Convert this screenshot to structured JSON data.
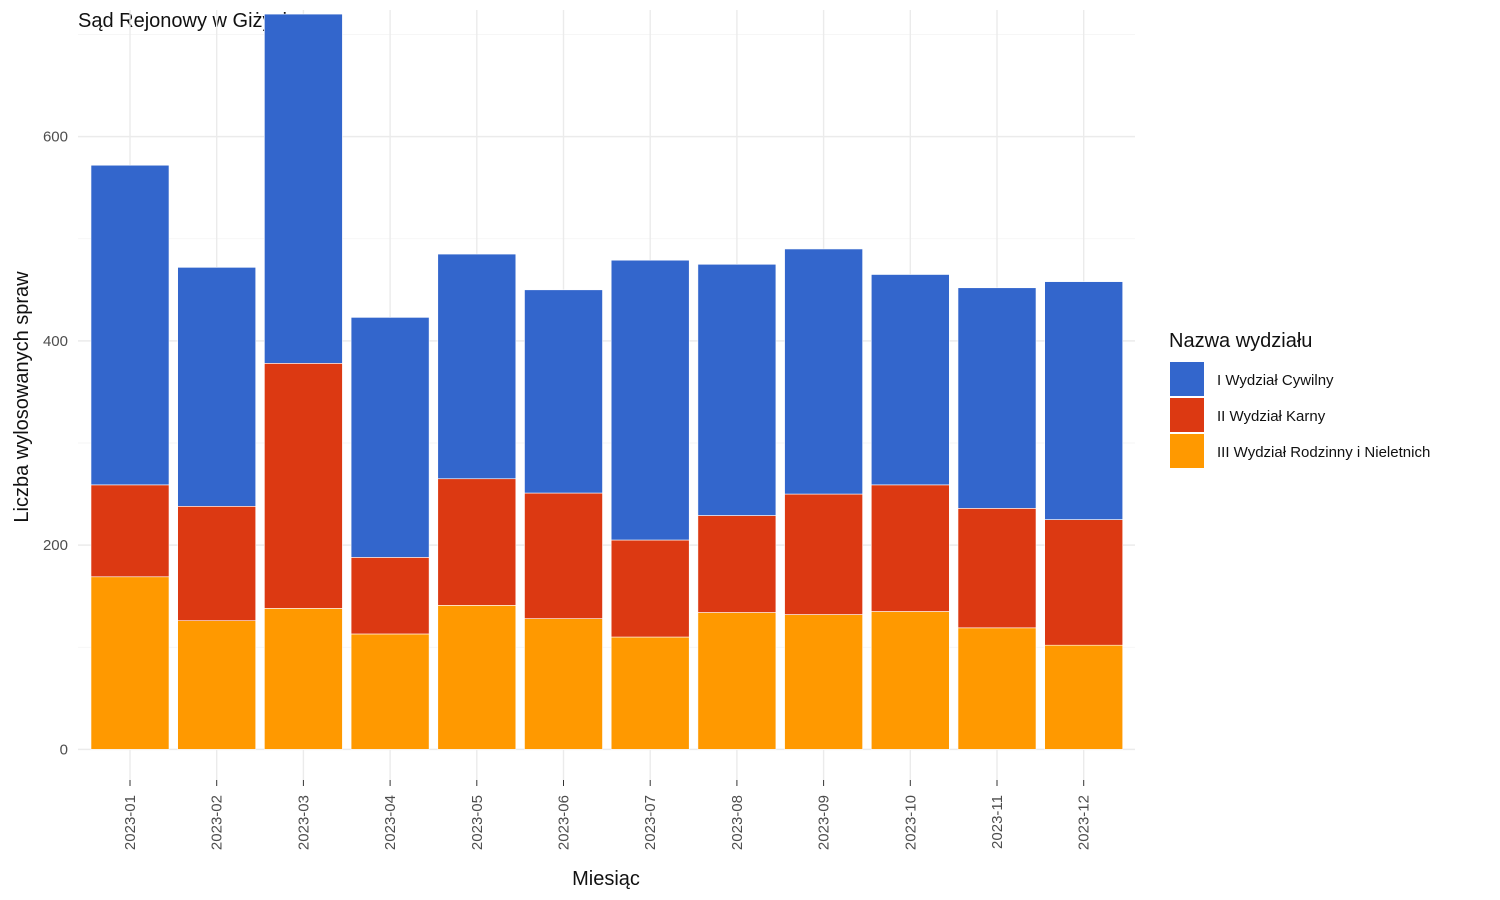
{
  "chart_data": {
    "type": "bar",
    "stacked": true,
    "title": "Sąd Rejonowy w Giżycku",
    "xlabel": "Miesiąc",
    "ylabel": "Liczba wylosowanych spraw",
    "categories": [
      "2023-01",
      "2023-02",
      "2023-03",
      "2023-04",
      "2023-05",
      "2023-06",
      "2023-07",
      "2023-08",
      "2023-09",
      "2023-10",
      "2023-11",
      "2023-12"
    ],
    "series": [
      {
        "name": "III Wydział Rodzinny i Nieletnich",
        "color": "#FF9900",
        "values": [
          169,
          126,
          138,
          113,
          141,
          128,
          110,
          134,
          132,
          135,
          119,
          102
        ]
      },
      {
        "name": "II Wydział Karny",
        "color": "#DC3912",
        "values": [
          90,
          112,
          240,
          75,
          124,
          123,
          95,
          95,
          118,
          124,
          117,
          123
        ]
      },
      {
        "name": "I Wydział Cywilny",
        "color": "#3366CC",
        "values": [
          313,
          234,
          342,
          235,
          220,
          199,
          274,
          246,
          240,
          206,
          216,
          233
        ]
      }
    ],
    "ylim": [
      -30,
      724
    ],
    "yticks": [
      0,
      200,
      400,
      600
    ],
    "grid": true,
    "legend": {
      "title": "Nazwa wydziału",
      "position": "right",
      "entries": [
        {
          "label": "I Wydział Cywilny",
          "color": "#3366CC"
        },
        {
          "label": "II Wydział Karny",
          "color": "#DC3912"
        },
        {
          "label": "III Wydział Rodzinny i Nieletnich",
          "color": "#FF9900"
        }
      ]
    }
  }
}
